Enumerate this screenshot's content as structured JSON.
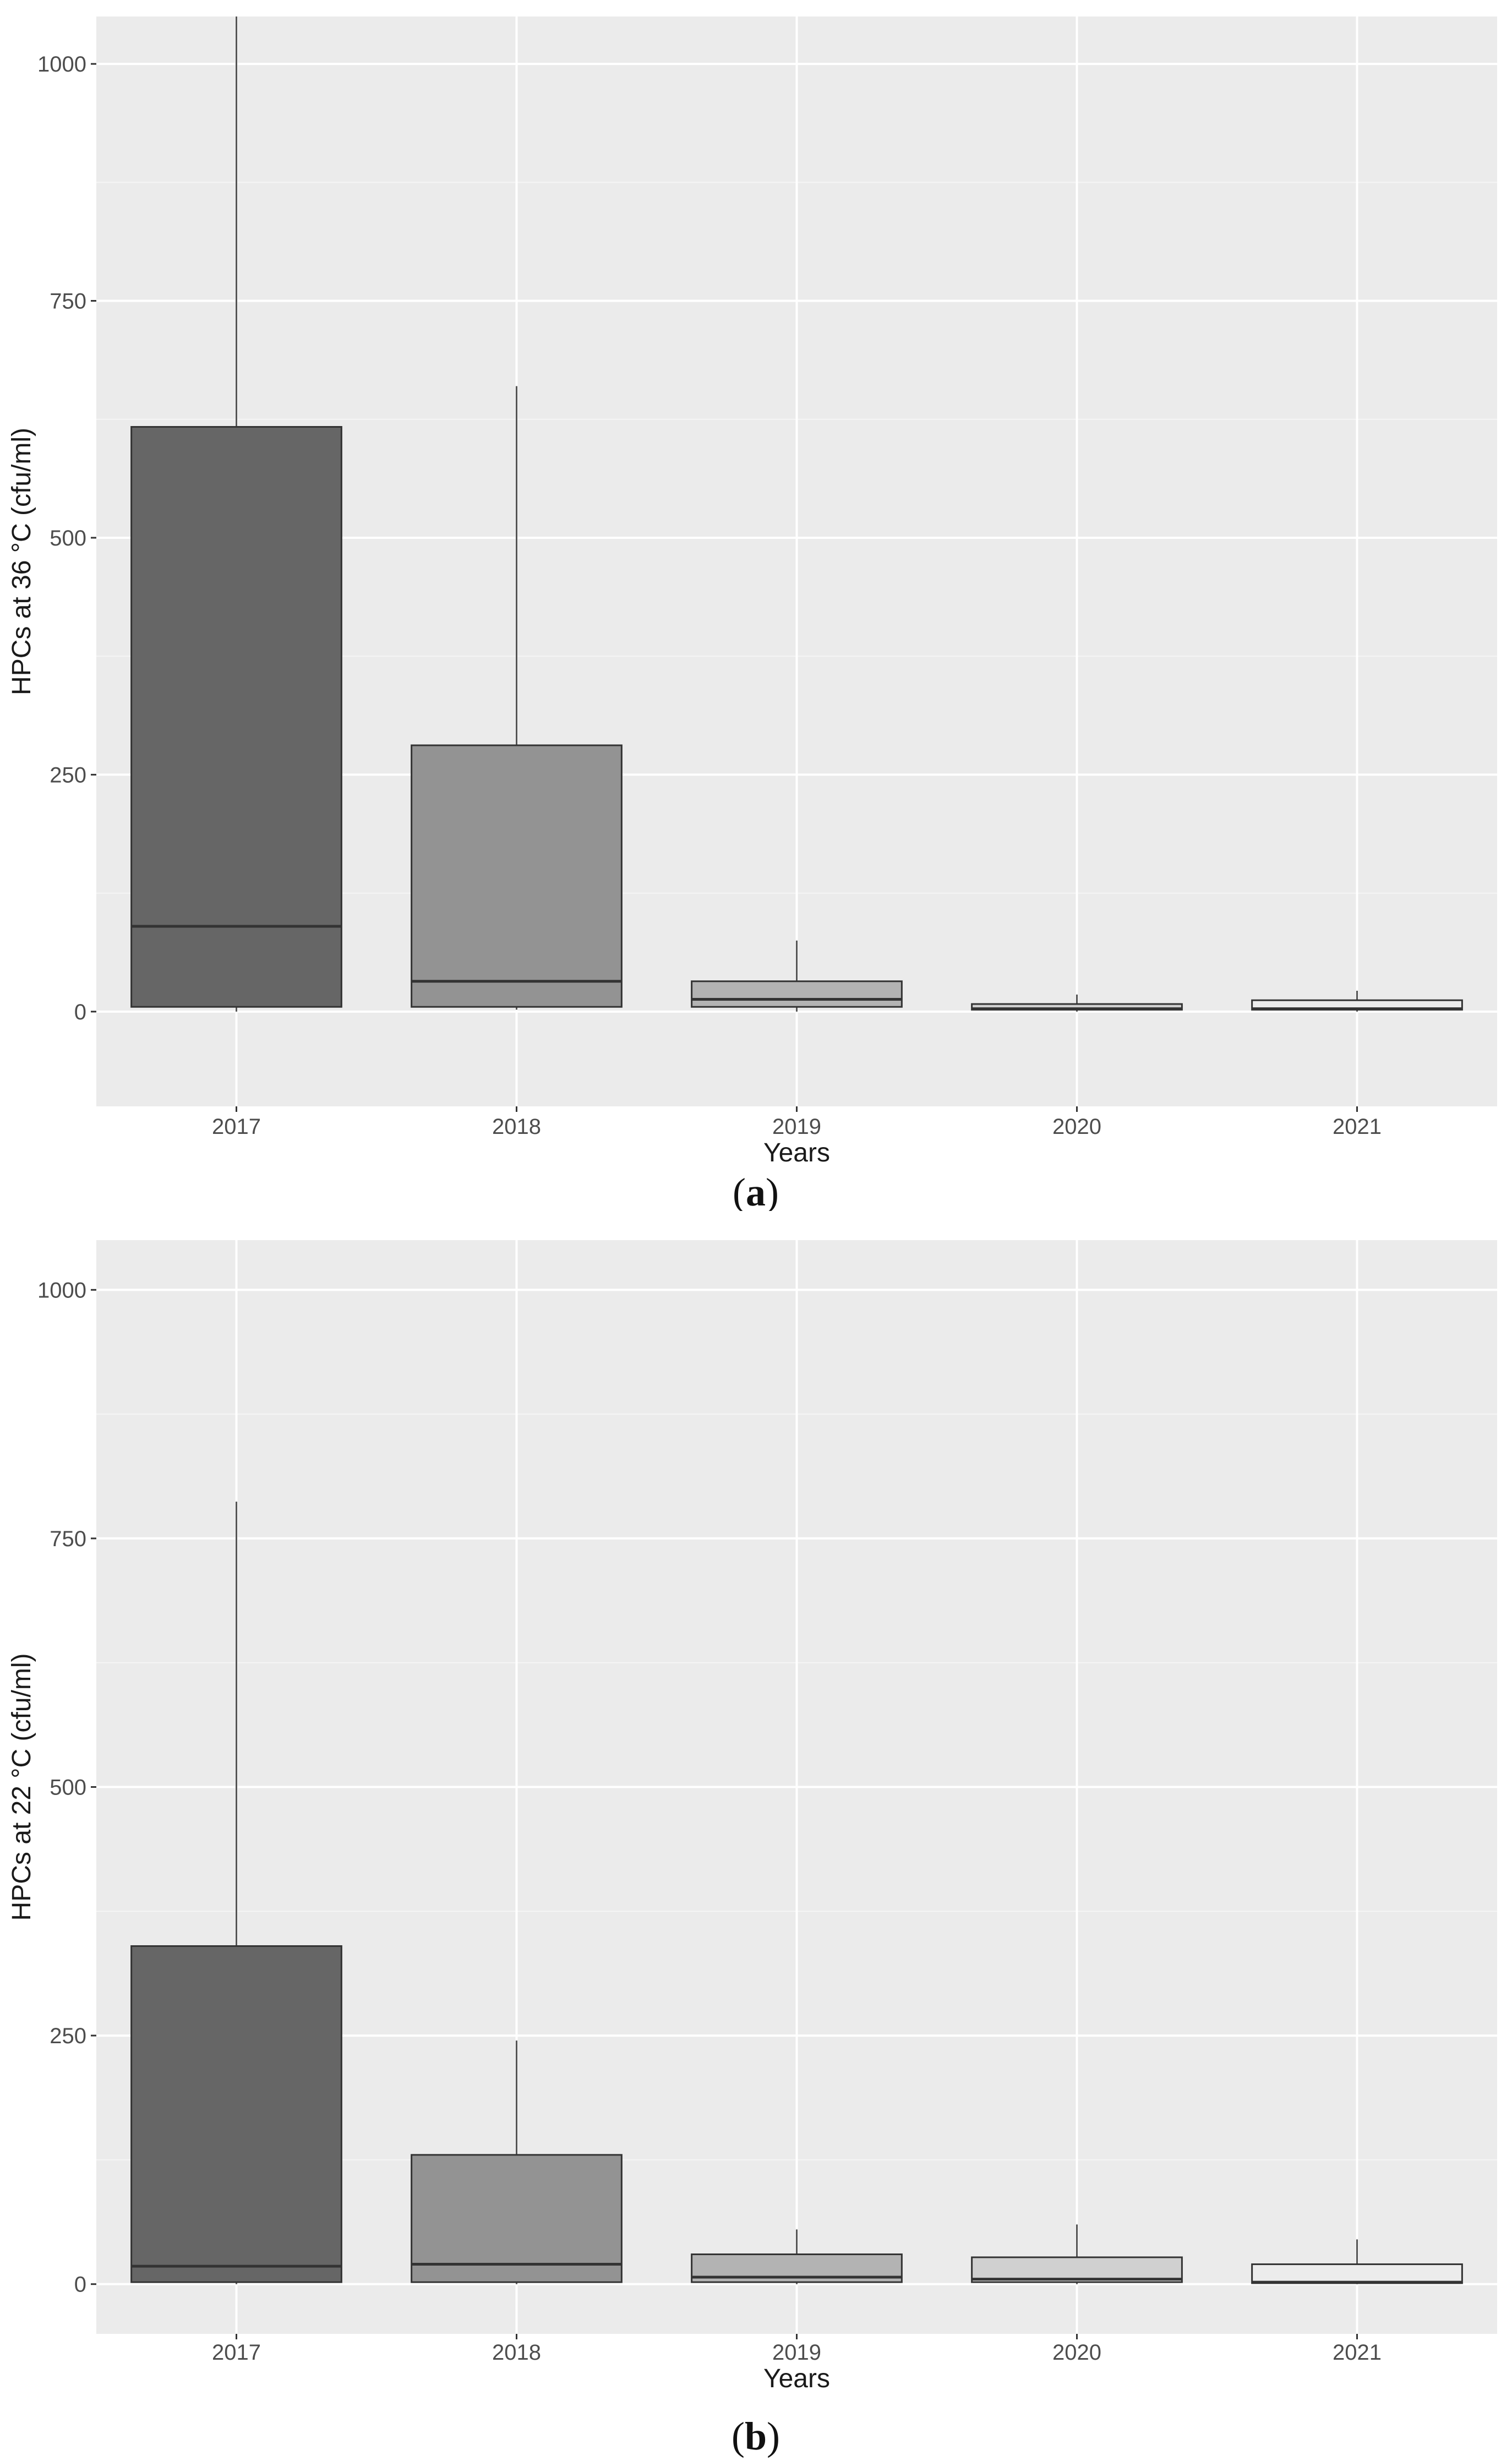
{
  "chart_data": [
    {
      "type": "box",
      "caption": "a",
      "xlabel": "Years",
      "ylabel": "HPCs at 36 °C (cfu/ml)",
      "ylim": [
        -100,
        1050
      ],
      "yticks": [
        0,
        250,
        500,
        750,
        1000
      ],
      "grid": true,
      "categories": [
        "2017",
        "2018",
        "2019",
        "2020",
        "2021"
      ],
      "boxes": [
        {
          "category": "2017",
          "whisker_low": 0,
          "q1": 5,
          "median": 90,
          "q3": 617,
          "whisker_high": 1050,
          "fill": "#666666"
        },
        {
          "category": "2018",
          "whisker_low": 2,
          "q1": 5,
          "median": 32,
          "q3": 281,
          "whisker_high": 660,
          "fill": "#939393"
        },
        {
          "category": "2019",
          "whisker_low": 0,
          "q1": 5,
          "median": 13,
          "q3": 32,
          "whisker_high": 75,
          "fill": "#b3b3b3"
        },
        {
          "category": "2020",
          "whisker_low": 0,
          "q1": 2,
          "median": 3,
          "q3": 8,
          "whisker_high": 18,
          "fill": "#d0d0d0"
        },
        {
          "category": "2021",
          "whisker_low": 0,
          "q1": 2,
          "median": 3,
          "q3": 12,
          "whisker_high": 22,
          "fill": "#ececec"
        }
      ]
    },
    {
      "type": "box",
      "caption": "b",
      "xlabel": "Years",
      "ylabel": "HPCs at 22 °C (cfu/ml)",
      "ylim": [
        -50,
        1050
      ],
      "yticks": [
        0,
        250,
        500,
        750,
        1000
      ],
      "grid": true,
      "categories": [
        "2017",
        "2018",
        "2019",
        "2020",
        "2021"
      ],
      "boxes": [
        {
          "category": "2017",
          "whisker_low": 0,
          "q1": 2,
          "median": 18,
          "q3": 340,
          "whisker_high": 787,
          "fill": "#666666"
        },
        {
          "category": "2018",
          "whisker_low": 0,
          "q1": 2,
          "median": 20,
          "q3": 130,
          "whisker_high": 245,
          "fill": "#939393"
        },
        {
          "category": "2019",
          "whisker_low": 0,
          "q1": 2,
          "median": 7,
          "q3": 30,
          "whisker_high": 55,
          "fill": "#b3b3b3"
        },
        {
          "category": "2020",
          "whisker_low": 0,
          "q1": 2,
          "median": 5,
          "q3": 27,
          "whisker_high": 60,
          "fill": "#d0d0d0"
        },
        {
          "category": "2021",
          "whisker_low": 0,
          "q1": 1,
          "median": 2,
          "q3": 20,
          "whisker_high": 45,
          "fill": "#ececec"
        }
      ]
    }
  ]
}
